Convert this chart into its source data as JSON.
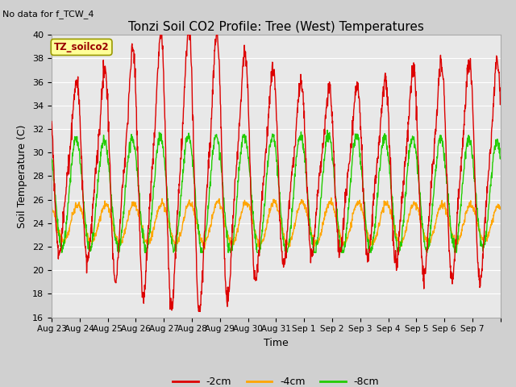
{
  "title": "Tonzi Soil CO2 Profile: Tree (West) Temperatures",
  "subtitle": "No data for f_TCW_4",
  "ylabel": "Soil Temperature (C)",
  "xlabel": "Time",
  "ylim": [
    16,
    40
  ],
  "yticks": [
    16,
    18,
    20,
    22,
    24,
    26,
    28,
    30,
    32,
    34,
    36,
    38,
    40
  ],
  "plot_bg_color": "#e8e8e8",
  "fig_bg_color": "#d0d0d0",
  "series": {
    "-2cm": {
      "color": "#dd0000",
      "label": "-2cm"
    },
    "-4cm": {
      "color": "#ffa500",
      "label": "-4cm"
    },
    "-8cm": {
      "color": "#22cc00",
      "label": "-8cm"
    }
  },
  "x_tick_labels": [
    "Aug 23",
    "Aug 24",
    "Aug 25",
    "Aug 26",
    "Aug 27",
    "Aug 28",
    "Aug 29",
    "Aug 30",
    "Aug 31",
    "Sep 1",
    "Sep 2",
    "Sep 3",
    "Sep 4",
    "Sep 5",
    "Sep 6",
    "Sep 7"
  ],
  "num_days": 16,
  "figsize": [
    6.4,
    4.8
  ],
  "dpi": 100
}
